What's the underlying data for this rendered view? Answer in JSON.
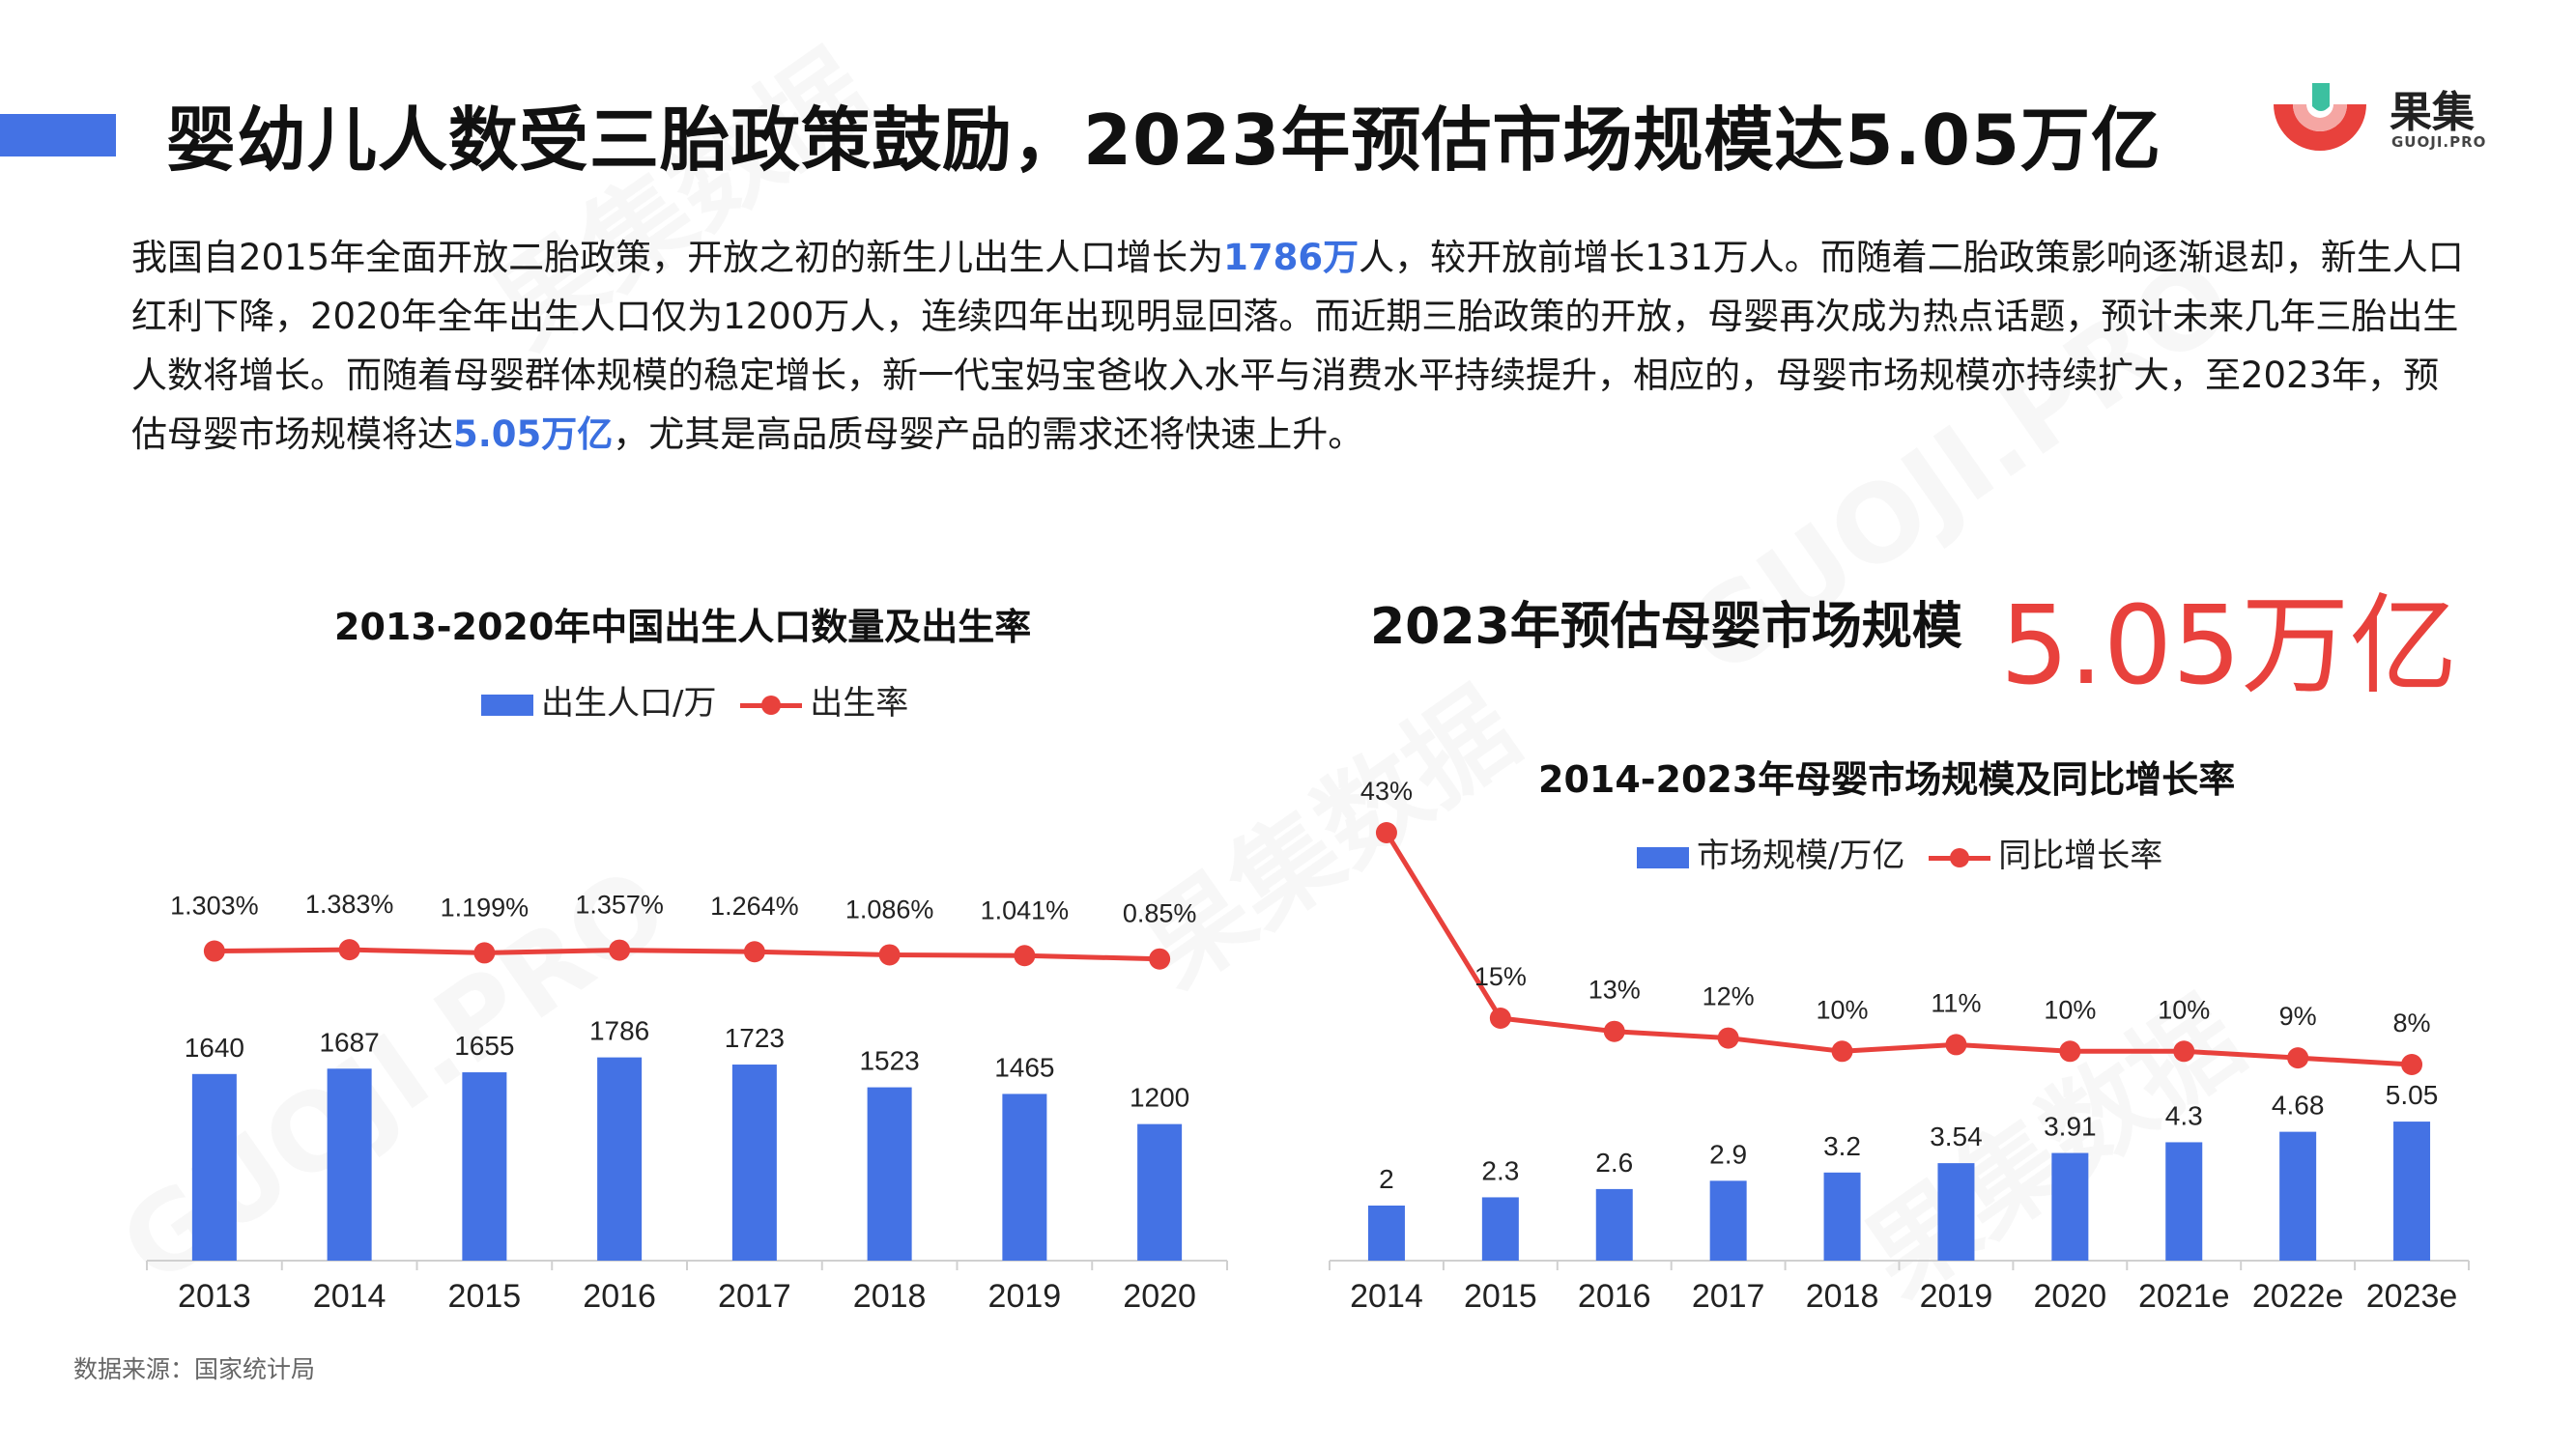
{
  "header": {
    "title": "婴幼儿人数受三胎政策鼓励，2023年预估市场规模达5.05万亿",
    "accent_color": "#4472e4"
  },
  "logo": {
    "name_cn": "果集",
    "name_en": "GUOJI.PRO",
    "colors": [
      "#e8413c",
      "#3cc0a0"
    ]
  },
  "intro": {
    "seg1": "我国自2015年全面开放二胎政策，开放之初的新生儿出生人口增长为",
    "hl1": "1786万",
    "seg2": "人，较开放前增长131万人。而随着二胎政策影响逐渐退却，新生人口红利下降，2020年全年出生人口仅为1200万人，连续四年出现明显回落。而近期三胎政策的开放，母婴再次成为热点话题，预计未来几年三胎出生人数将增长。而随着母婴群体规模的稳定增长，新一代宝妈宝爸收入水平与消费水平持续提升，相应的，母婴市场规模亦持续扩大，至2023年，预估母婴市场规模将达",
    "hl2": "5.05万亿",
    "seg3": "，尤其是高品质母婴产品的需求还将快速上升。"
  },
  "highlight": {
    "label": "2023年预估母婴市场规模",
    "value": "5.05万亿",
    "color": "#e8413c"
  },
  "source": "数据来源：国家统计局",
  "watermark": {
    "cn": "果集数据",
    "en": "GUOJI.PRO"
  },
  "chart_data": [
    {
      "type": "bar",
      "title": "2013-2020年中国出生人口数量及出生率",
      "categories": [
        "2013",
        "2014",
        "2015",
        "2016",
        "2017",
        "2018",
        "2019",
        "2020"
      ],
      "series": [
        {
          "name": "出生人口/万",
          "type": "bar",
          "color": "#4472e4",
          "values": [
            1640,
            1687,
            1655,
            1786,
            1723,
            1523,
            1465,
            1200
          ]
        },
        {
          "name": "出生率",
          "type": "line",
          "color": "#e8413c",
          "values": [
            1.303,
            1.383,
            1.199,
            1.357,
            1.264,
            1.086,
            1.041,
            0.85
          ],
          "labels": [
            "1.303%",
            "1.383%",
            "1.199%",
            "1.357%",
            "1.264%",
            "1.086%",
            "1.041%",
            "0.85%"
          ]
        }
      ],
      "legend": "top-center",
      "grid": false
    },
    {
      "type": "bar",
      "title": "2014-2023年母婴市场规模及同比增长率",
      "categories": [
        "2014",
        "2015",
        "2016",
        "2017",
        "2018",
        "2019",
        "2020",
        "2021e",
        "2022e",
        "2023e"
      ],
      "series": [
        {
          "name": "市场规模/万亿",
          "type": "bar",
          "color": "#4472e4",
          "values": [
            2,
            2.3,
            2.6,
            2.9,
            3.2,
            3.54,
            3.91,
            4.3,
            4.68,
            5.05
          ]
        },
        {
          "name": "同比增长率",
          "type": "line",
          "color": "#e8413c",
          "values": [
            43,
            15,
            13,
            12,
            10,
            11,
            10,
            10,
            9,
            8
          ],
          "labels": [
            "43%",
            "15%",
            "13%",
            "12%",
            "10%",
            "11%",
            "10%",
            "10%",
            "9%",
            "8%"
          ]
        }
      ],
      "legend": "top-center",
      "grid": false
    }
  ]
}
